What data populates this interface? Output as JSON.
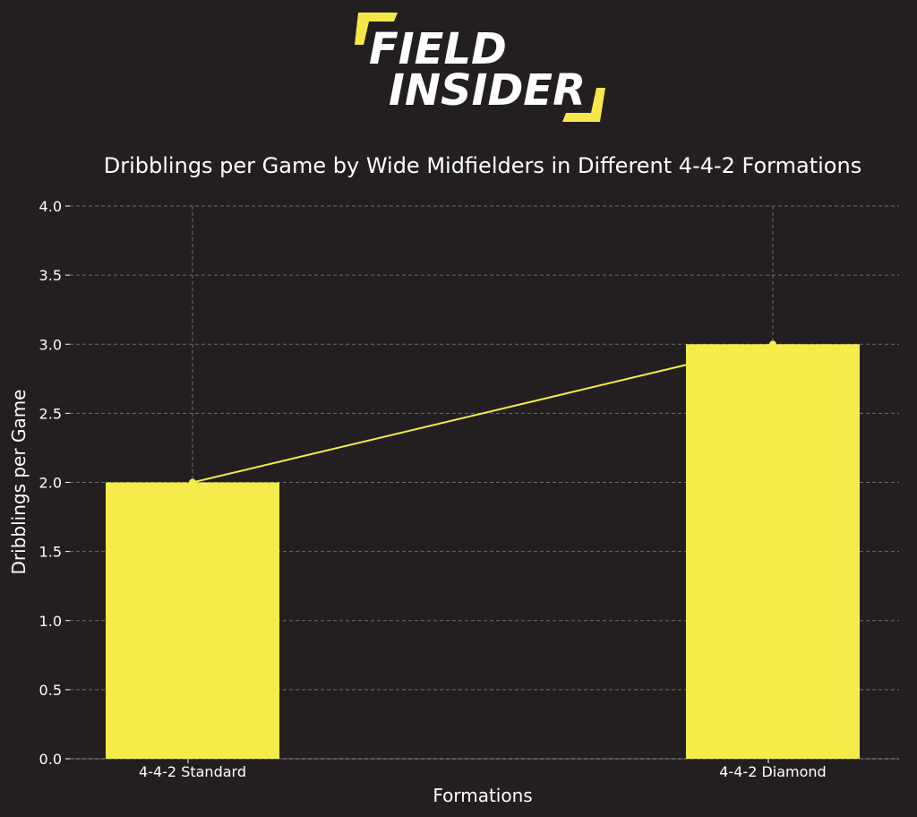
{
  "logo": {
    "line1": "FIELD",
    "line2": "INSIDER",
    "accent_color": "#f5e94a"
  },
  "chart_data": {
    "type": "bar",
    "title": "Dribblings per Game by Wide Midfielders in Different 4-4-2 Formations",
    "xlabel": "Formations",
    "ylabel": "Dribblings per Game",
    "categories": [
      "4-4-2 Standard",
      "4-4-2 Diamond"
    ],
    "values": [
      2.0,
      3.0
    ],
    "line_overlay": true,
    "ylim": [
      0,
      4.0
    ],
    "yticks": [
      "0.0",
      "0.5",
      "1.0",
      "1.5",
      "2.0",
      "2.5",
      "3.0",
      "3.5",
      "4.0"
    ],
    "grid": true,
    "bar_color": "#f5ec4a",
    "line_color": "#f5ec4a",
    "background": "#231f20",
    "grid_color": "#6f6b6c"
  }
}
